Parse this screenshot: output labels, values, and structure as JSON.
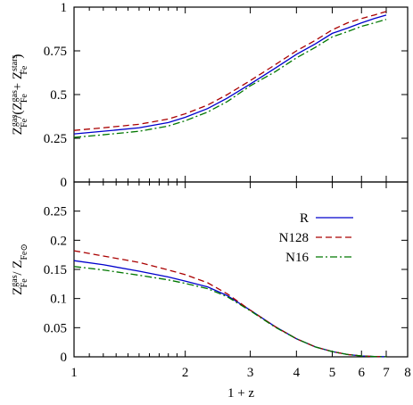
{
  "chart_data": [
    {
      "type": "line",
      "panel": "top",
      "x_scale": "log",
      "xlim": [
        1,
        8
      ],
      "ylim": [
        0,
        1
      ],
      "x_ticks": [
        1,
        2,
        3,
        4,
        5,
        6,
        7,
        8
      ],
      "y_ticks": [
        0,
        0.25,
        0.5,
        0.75,
        1
      ],
      "y_tick_labels": [
        "0",
        "0.25",
        "0.5",
        "0.75",
        "1"
      ],
      "ylabel": {
        "prefix": "Z",
        "sup1": "gas",
        "sub1": "Fe",
        "mid": "/(Z",
        "sup2": "gas",
        "sub2": "Fe",
        "mid2": " + Z",
        "sup3": "stars",
        "sub3": "Fe",
        "suffix": ")"
      },
      "series": [
        {
          "name": "R",
          "color": "#0000cc",
          "dash": "",
          "x": [
            1,
            1.2,
            1.5,
            1.8,
            2.0,
            2.3,
            2.6,
            3.0,
            3.5,
            4.0,
            4.5,
            5.0,
            5.5,
            6.0,
            6.5,
            7.0
          ],
          "y": [
            0.275,
            0.29,
            0.31,
            0.34,
            0.37,
            0.42,
            0.48,
            0.56,
            0.65,
            0.73,
            0.79,
            0.85,
            0.88,
            0.91,
            0.935,
            0.955
          ]
        },
        {
          "name": "N128",
          "color": "#aa0000",
          "dash": "7,4",
          "x": [
            1,
            1.2,
            1.5,
            1.8,
            2.0,
            2.3,
            2.6,
            3.0,
            3.5,
            4.0,
            4.5,
            5.0,
            5.5,
            6.0,
            6.5,
            7.0
          ],
          "y": [
            0.295,
            0.31,
            0.33,
            0.36,
            0.39,
            0.44,
            0.5,
            0.58,
            0.67,
            0.75,
            0.81,
            0.87,
            0.91,
            0.935,
            0.955,
            0.975
          ]
        },
        {
          "name": "N16",
          "color": "#007700",
          "dash": "8,3,2,3",
          "x": [
            1,
            1.2,
            1.5,
            1.8,
            2.0,
            2.3,
            2.6,
            3.0,
            3.5,
            4.0,
            4.5,
            5.0,
            5.5,
            6.0,
            6.5,
            7.0
          ],
          "y": [
            0.255,
            0.27,
            0.29,
            0.32,
            0.35,
            0.4,
            0.46,
            0.55,
            0.63,
            0.71,
            0.77,
            0.83,
            0.86,
            0.89,
            0.91,
            0.93
          ]
        }
      ]
    },
    {
      "type": "line",
      "panel": "bottom",
      "x_scale": "log",
      "xlim": [
        1,
        8
      ],
      "ylim": [
        0,
        0.3
      ],
      "x_ticks": [
        1,
        2,
        3,
        4,
        5,
        6,
        7,
        8
      ],
      "x_tick_labels": [
        "1",
        "2",
        "3",
        "4",
        "5",
        "6",
        "7",
        "8"
      ],
      "y_ticks": [
        0,
        0.05,
        0.1,
        0.15,
        0.2,
        0.25
      ],
      "y_tick_labels": [
        "0",
        "0.05",
        "0.1",
        "0.15",
        "0.2",
        "0.25"
      ],
      "xlabel": "1 + z",
      "ylabel": {
        "prefix": "Z",
        "sup1": "gas",
        "sub1": "Fe",
        "mid": " / Z",
        "sub2": "Fe⊙"
      },
      "legend": "top-right",
      "series": [
        {
          "name": "R",
          "color": "#0000cc",
          "dash": "",
          "x": [
            1,
            1.2,
            1.5,
            1.8,
            2.0,
            2.3,
            2.6,
            3.0,
            3.5,
            4.0,
            4.5,
            5.0,
            5.5,
            6.0,
            6.5,
            7.0
          ],
          "y": [
            0.165,
            0.158,
            0.147,
            0.137,
            0.13,
            0.12,
            0.105,
            0.08,
            0.052,
            0.031,
            0.017,
            0.009,
            0.004,
            0.0015,
            0.0005,
            0.0002
          ]
        },
        {
          "name": "N128",
          "color": "#aa0000",
          "dash": "7,4",
          "x": [
            1,
            1.2,
            1.5,
            1.8,
            2.0,
            2.3,
            2.6,
            3.0,
            3.5,
            4.0,
            4.5,
            5.0,
            5.5,
            6.0,
            6.5,
            7.0
          ],
          "y": [
            0.182,
            0.173,
            0.162,
            0.149,
            0.141,
            0.127,
            0.108,
            0.08,
            0.052,
            0.031,
            0.017,
            0.009,
            0.004,
            0.0015,
            0.0005,
            0.0002
          ]
        },
        {
          "name": "N16",
          "color": "#007700",
          "dash": "8,3,2,3",
          "x": [
            1,
            1.2,
            1.5,
            1.8,
            2.0,
            2.3,
            2.6,
            3.0,
            3.5,
            4.0,
            4.5,
            5.0,
            5.5,
            6.0,
            6.5,
            7.0
          ],
          "y": [
            0.155,
            0.149,
            0.14,
            0.132,
            0.126,
            0.117,
            0.103,
            0.079,
            0.051,
            0.031,
            0.017,
            0.009,
            0.004,
            0.0015,
            0.0005,
            0.0002
          ]
        }
      ]
    }
  ]
}
